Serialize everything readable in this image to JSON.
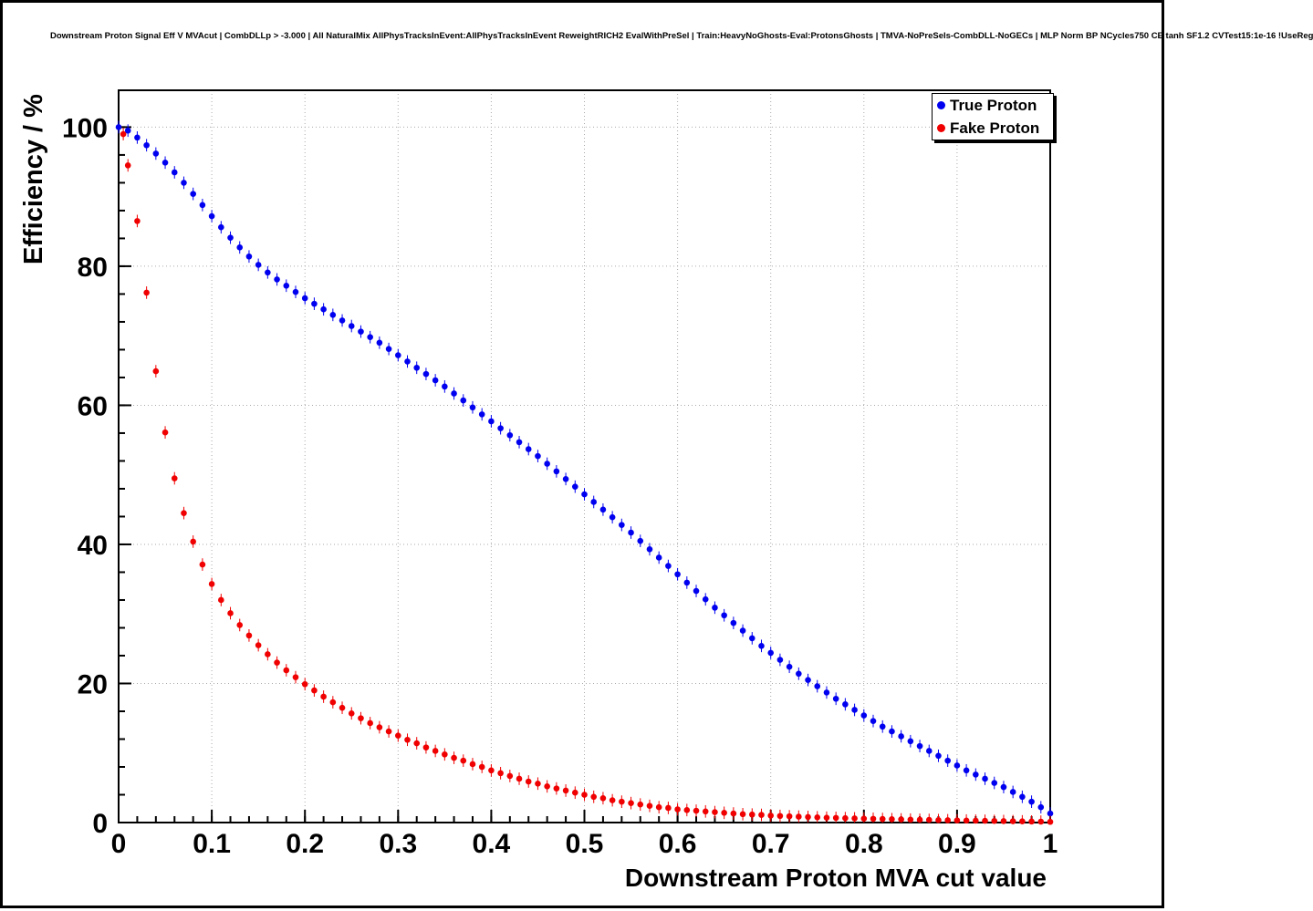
{
  "header": {
    "title": "Downstream Proton Signal Eff V MVAcut | CombDLLp > -3.000 | All NaturalMix AllPhysTracksInEvent:AllPhysTracksInEvent ReweightRICH2 EvalWithPreSel | Train:HeavyNoGhosts-Eval:ProtonsGhosts | TMVA-NoPreSels-CombDLL-NoGECs | MLP Norm BP NCycles750 CE tanh SF1.2 CVTest15:1e-16 !UseReg"
  },
  "chart_data": {
    "type": "scatter",
    "title": "Downstream Proton Signal Eff V MVAcut | CombDLLp > -3.000 | All NaturalMix AllPhysTracksInEvent:AllPhysTracksInEvent ReweightRICH2 EvalWithPreSel | Train:HeavyNoGhosts-Eval:ProtonsGhosts | TMVA-NoPreSels-CombDLL-NoGECs | MLP Norm BP NCycles750 CE tanh SF1.2 CVTest15:1e-16 !UseReg",
    "xlabel": "Downstream Proton MVA cut value",
    "ylabel": "Efficiency / %",
    "xlim": [
      0,
      1
    ],
    "ylim": [
      0,
      105.3
    ],
    "grid": true,
    "legend_position": "top-right",
    "x_ticks": {
      "values": [
        0,
        0.1,
        0.2,
        0.3,
        0.4,
        0.5,
        0.6,
        0.7,
        0.8,
        0.9,
        1
      ],
      "labels": [
        "0",
        "0.1",
        "0.2",
        "0.3",
        "0.4",
        "0.5",
        "0.6",
        "0.7",
        "0.8",
        "0.9",
        "1"
      ]
    },
    "y_ticks": {
      "values": [
        0,
        20,
        40,
        60,
        80,
        100
      ],
      "labels": [
        "0",
        "20",
        "40",
        "60",
        "80",
        "100"
      ]
    },
    "series": [
      {
        "name": "True Proton",
        "color": "#0000f0",
        "yerr": 0.9,
        "x": [
          0,
          0.01,
          0.02,
          0.03,
          0.04,
          0.05,
          0.06,
          0.07,
          0.08,
          0.09,
          0.1,
          0.11,
          0.12,
          0.13,
          0.14,
          0.15,
          0.16,
          0.17,
          0.18,
          0.19,
          0.2,
          0.21,
          0.22,
          0.23,
          0.24,
          0.25,
          0.26,
          0.27,
          0.28,
          0.29,
          0.3,
          0.31,
          0.32,
          0.33,
          0.34,
          0.35,
          0.36,
          0.37,
          0.38,
          0.39,
          0.4,
          0.41,
          0.42,
          0.43,
          0.44,
          0.45,
          0.46,
          0.47,
          0.48,
          0.49,
          0.5,
          0.51,
          0.52,
          0.53,
          0.54,
          0.55,
          0.56,
          0.57,
          0.58,
          0.59,
          0.6,
          0.61,
          0.62,
          0.63,
          0.64,
          0.65,
          0.66,
          0.67,
          0.68,
          0.69,
          0.7,
          0.71,
          0.72,
          0.73,
          0.74,
          0.75,
          0.76,
          0.77,
          0.78,
          0.79,
          0.8,
          0.81,
          0.82,
          0.83,
          0.84,
          0.85,
          0.86,
          0.87,
          0.88,
          0.89,
          0.9,
          0.91,
          0.92,
          0.93,
          0.94,
          0.95,
          0.96,
          0.97,
          0.98,
          0.99,
          1
        ],
        "y": [
          100,
          99.5,
          98.5,
          97.4,
          96.2,
          94.9,
          93.5,
          92.0,
          90.4,
          88.8,
          87.2,
          85.6,
          84.1,
          82.7,
          81.4,
          80.2,
          79.1,
          78.1,
          77.2,
          76.3,
          75.4,
          74.6,
          73.8,
          73.0,
          72.2,
          71.4,
          70.6,
          69.8,
          69.0,
          68.1,
          67.2,
          66.3,
          65.4,
          64.5,
          63.6,
          62.7,
          61.7,
          60.7,
          59.7,
          58.7,
          57.7,
          56.7,
          55.7,
          54.7,
          53.7,
          52.7,
          51.6,
          50.5,
          49.4,
          48.3,
          47.2,
          46.1,
          45.0,
          43.9,
          42.8,
          41.7,
          40.5,
          39.3,
          38.1,
          36.9,
          35.7,
          34.5,
          33.3,
          32.1,
          30.9,
          29.8,
          28.7,
          27.6,
          26.5,
          25.4,
          24.4,
          23.4,
          22.4,
          21.4,
          20.5,
          19.6,
          18.7,
          17.8,
          17.0,
          16.2,
          15.4,
          14.6,
          13.8,
          13.1,
          12.4,
          11.7,
          11.0,
          10.3,
          9.6,
          8.9,
          8.2,
          7.5,
          6.9,
          6.3,
          5.7,
          5.1,
          4.4,
          3.7,
          3.0,
          2.2,
          1.3
        ]
      },
      {
        "name": "Fake Proton",
        "color": "#f00000",
        "yerr": 0.9,
        "x": [
          0.005,
          0.01,
          0.02,
          0.03,
          0.04,
          0.05,
          0.06,
          0.07,
          0.08,
          0.09,
          0.1,
          0.11,
          0.12,
          0.13,
          0.14,
          0.15,
          0.16,
          0.17,
          0.18,
          0.19,
          0.2,
          0.21,
          0.22,
          0.23,
          0.24,
          0.25,
          0.26,
          0.27,
          0.28,
          0.29,
          0.3,
          0.31,
          0.32,
          0.33,
          0.34,
          0.35,
          0.36,
          0.37,
          0.38,
          0.39,
          0.4,
          0.41,
          0.42,
          0.43,
          0.44,
          0.45,
          0.46,
          0.47,
          0.48,
          0.49,
          0.5,
          0.51,
          0.52,
          0.53,
          0.54,
          0.55,
          0.56,
          0.57,
          0.58,
          0.59,
          0.6,
          0.61,
          0.62,
          0.63,
          0.64,
          0.65,
          0.66,
          0.67,
          0.68,
          0.69,
          0.7,
          0.71,
          0.72,
          0.73,
          0.74,
          0.75,
          0.76,
          0.77,
          0.78,
          0.79,
          0.8,
          0.81,
          0.82,
          0.83,
          0.84,
          0.85,
          0.86,
          0.87,
          0.88,
          0.89,
          0.9,
          0.91,
          0.92,
          0.93,
          0.94,
          0.95,
          0.96,
          0.97,
          0.98,
          0.99,
          1
        ],
        "y": [
          99.0,
          94.5,
          86.5,
          76.2,
          64.9,
          56.1,
          49.5,
          44.5,
          40.4,
          37.1,
          34.3,
          32.0,
          30.1,
          28.4,
          26.9,
          25.5,
          24.2,
          23.0,
          21.9,
          20.9,
          19.9,
          19.0,
          18.1,
          17.3,
          16.5,
          15.7,
          15.0,
          14.3,
          13.7,
          13.1,
          12.5,
          11.9,
          11.4,
          10.8,
          10.3,
          9.8,
          9.3,
          8.9,
          8.4,
          8.0,
          7.5,
          7.1,
          6.7,
          6.3,
          5.9,
          5.6,
          5.2,
          4.9,
          4.6,
          4.3,
          4.0,
          3.7,
          3.5,
          3.2,
          3.0,
          2.8,
          2.6,
          2.4,
          2.2,
          2.1,
          1.9,
          1.8,
          1.7,
          1.6,
          1.5,
          1.4,
          1.3,
          1.2,
          1.15,
          1.1,
          1.0,
          0.95,
          0.9,
          0.85,
          0.8,
          0.75,
          0.7,
          0.67,
          0.63,
          0.6,
          0.57,
          0.54,
          0.51,
          0.48,
          0.45,
          0.42,
          0.4,
          0.38,
          0.35,
          0.33,
          0.31,
          0.29,
          0.27,
          0.25,
          0.23,
          0.21,
          0.19,
          0.17,
          0.15,
          0.13,
          0.1
        ]
      }
    ]
  }
}
